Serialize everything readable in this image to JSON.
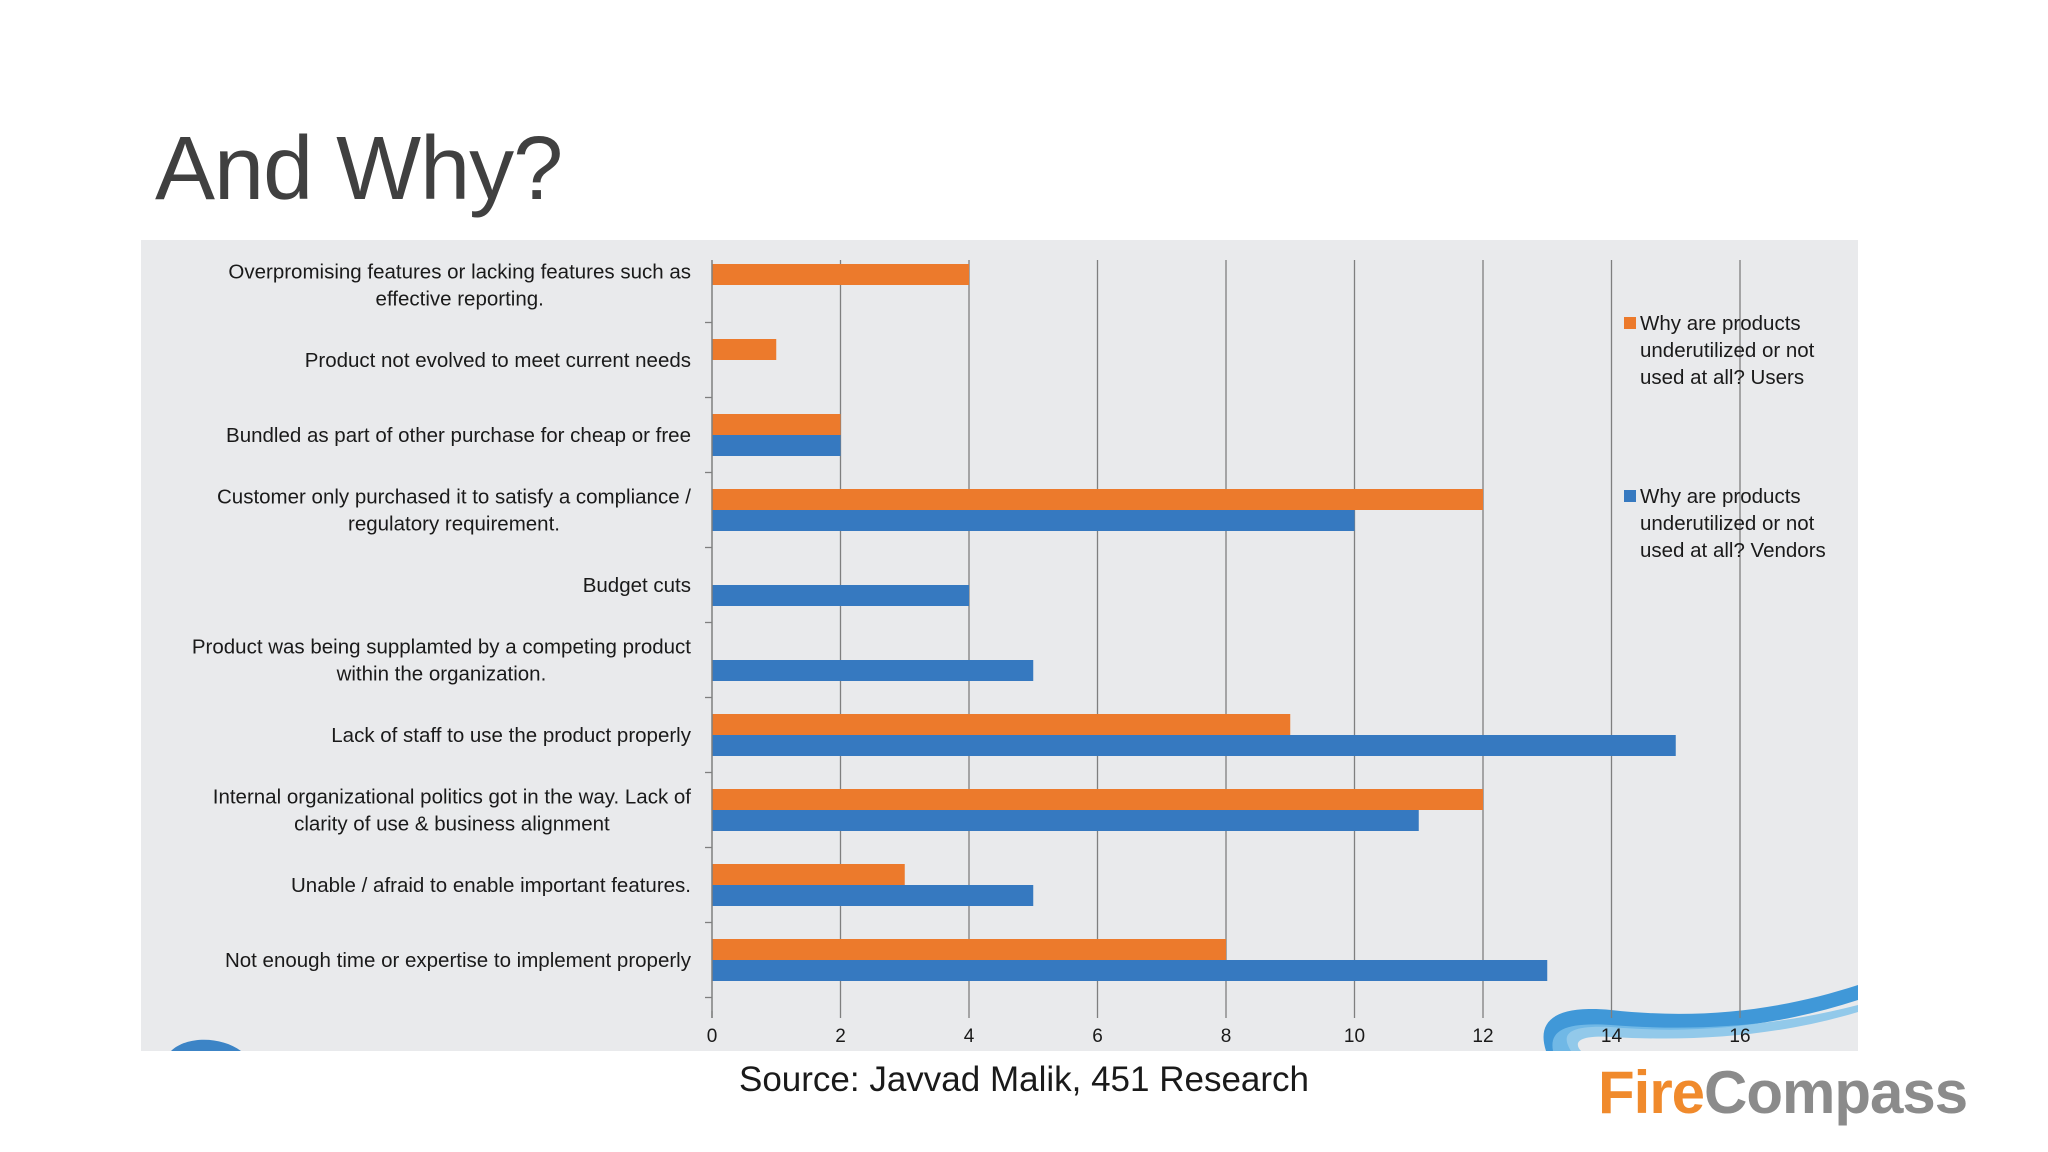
{
  "slide": {
    "title": "And Why?",
    "source": "Source: Javvad Malik, 451 Research",
    "logo": {
      "part1": "Fire",
      "part2": "Compass"
    }
  },
  "colors": {
    "users": "#ec7a2c",
    "vendors": "#3679c0",
    "grid": "#7f7f7f",
    "panel": "#e9eaec"
  },
  "chart_data": {
    "type": "bar",
    "orientation": "horizontal",
    "categories": [
      [
        "Overpromising features or lacking features such as",
        "effective reporting."
      ],
      [
        "Product not evolved to meet current needs"
      ],
      [
        "Bundled as part of other purchase for cheap or free"
      ],
      [
        "Customer only purchased it to satisfy a compliance /",
        "regulatory requirement."
      ],
      [
        "Budget cuts"
      ],
      [
        "Product was being supplamted by a competing product",
        "within the organization."
      ],
      [
        "Lack of staff to use the product properly"
      ],
      [
        "Internal organizational politics got in the way. Lack of",
        "clarity of use & business alignment"
      ],
      [
        "Unable / afraid to enable important features."
      ],
      [
        "Not enough time or expertise to implement properly"
      ]
    ],
    "series": [
      {
        "name": [
          "Why are products",
          "underutilized or not",
          "used at all? Users"
        ],
        "values": [
          4,
          1,
          2,
          12,
          null,
          null,
          9,
          12,
          3,
          8
        ]
      },
      {
        "name": [
          "Why are products",
          "underutilized or not",
          "used at all? Vendors"
        ],
        "values": [
          null,
          null,
          2,
          10,
          4,
          5,
          15,
          11,
          5,
          13
        ]
      }
    ],
    "x_ticks": [
      "0",
      "2",
      "4",
      "6",
      "8",
      "10",
      "12",
      "14",
      "16"
    ],
    "xlim": [
      0,
      16
    ],
    "grid": true,
    "legend_position": "right"
  }
}
